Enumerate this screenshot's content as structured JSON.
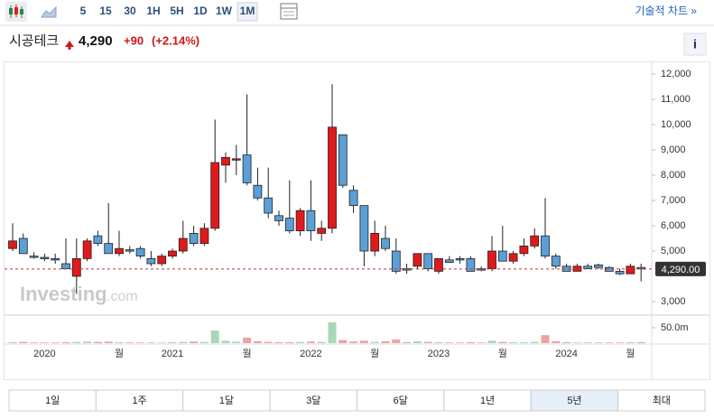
{
  "toolbar": {
    "intervals": [
      "5",
      "15",
      "30",
      "1H",
      "5H",
      "1D",
      "1W",
      "1M"
    ],
    "selected_interval": 7,
    "technical_chart": "기술적 차트 »"
  },
  "header": {
    "name": "시공테크",
    "price": "4,290",
    "change": "+90",
    "change_pct": "(+2.14%)",
    "info": "i"
  },
  "watermark": {
    "brand": "Investing",
    "suffix": ".com"
  },
  "ranges": {
    "labels": [
      "1일",
      "1주",
      "1달",
      "3달",
      "6달",
      "1년",
      "5년",
      "최대"
    ],
    "selected": 6
  },
  "chart_data": {
    "type": "candlestick",
    "categories": [
      null,
      null,
      null,
      "2020",
      null,
      null,
      null,
      null,
      null,
      null,
      "월",
      null,
      null,
      null,
      null,
      "2021",
      null,
      null,
      null,
      null,
      null,
      null,
      "월",
      null,
      null,
      null,
      null,
      null,
      "2022",
      null,
      null,
      null,
      null,
      null,
      "월",
      null,
      null,
      null,
      null,
      null,
      "2023",
      null,
      null,
      null,
      null,
      null,
      "월",
      null,
      null,
      null,
      null,
      null,
      "2024",
      null,
      null,
      null,
      null,
      null,
      "월",
      null
    ],
    "open": [
      5100,
      5500,
      4800,
      4750,
      4700,
      4500,
      4000,
      4700,
      5600,
      5300,
      4900,
      5050,
      5100,
      4700,
      4500,
      4800,
      5000,
      5700,
      5300,
      5900,
      8400,
      8600,
      8800,
      7600,
      7100,
      6400,
      6300,
      5800,
      6600,
      5700,
      5900,
      9600,
      7400,
      6800,
      5000,
      5500,
      5000,
      4300,
      4400,
      4900,
      4200,
      4650,
      4700,
      4700,
      4300,
      4300,
      5000,
      4600,
      4900,
      5200,
      5600,
      4800,
      4400,
      4200,
      4400,
      4450,
      4350,
      4200,
      4100,
      4350
    ],
    "high": [
      6100,
      5700,
      4950,
      4900,
      4900,
      5500,
      5500,
      5500,
      5800,
      6900,
      5800,
      5200,
      5200,
      5000,
      4900,
      5100,
      6200,
      6000,
      6100,
      10200,
      8900,
      9200,
      11200,
      8300,
      8300,
      6600,
      7800,
      6700,
      7800,
      6200,
      11600,
      9600,
      7600,
      6800,
      6200,
      6000,
      5500,
      4500,
      4900,
      4900,
      4700,
      4800,
      4800,
      4800,
      4400,
      5600,
      6000,
      5000,
      5500,
      5900,
      7100,
      4900,
      4500,
      4500,
      4500,
      4500,
      4400,
      4300,
      4500,
      4500
    ],
    "low": [
      5000,
      4900,
      4700,
      4600,
      4500,
      4300,
      3300,
      4600,
      5200,
      4900,
      4800,
      4900,
      4700,
      4400,
      4400,
      4700,
      4900,
      5200,
      5200,
      5800,
      7700,
      8000,
      7600,
      7000,
      6300,
      6000,
      5700,
      5600,
      5400,
      5400,
      5700,
      7500,
      6500,
      4400,
      4800,
      5000,
      4100,
      4100,
      4300,
      4200,
      4100,
      4550,
      4500,
      4200,
      4200,
      4200,
      4600,
      4500,
      4800,
      5100,
      4700,
      4300,
      4200,
      4200,
      4300,
      4300,
      4200,
      4050,
      4100,
      3800
    ],
    "close": [
      5400,
      4900,
      4800,
      4750,
      4700,
      4300,
      4700,
      5400,
      5300,
      4900,
      5100,
      5000,
      4800,
      4500,
      4800,
      5000,
      5500,
      5300,
      5900,
      8500,
      8700,
      8650,
      7700,
      7100,
      6500,
      6200,
      5800,
      6600,
      5800,
      5900,
      9900,
      7600,
      6800,
      5000,
      5700,
      5100,
      4200,
      4300,
      4900,
      4300,
      4700,
      4550,
      4700,
      4200,
      4300,
      5000,
      4600,
      4900,
      5200,
      5600,
      4800,
      4400,
      4200,
      4400,
      4300,
      4350,
      4200,
      4100,
      4400,
      4290
    ],
    "volume": [
      3,
      4,
      2,
      2,
      2,
      3,
      4,
      5,
      4,
      5,
      3,
      2,
      2,
      2,
      2,
      3,
      4,
      5,
      4,
      41,
      8,
      5,
      18,
      6,
      4,
      3,
      3,
      4,
      5,
      4,
      68,
      10,
      5,
      8,
      4,
      6,
      12,
      3,
      6,
      4,
      3,
      2,
      2,
      3,
      2,
      8,
      4,
      3,
      3,
      4,
      26,
      6,
      3,
      2,
      2,
      2,
      2,
      2,
      3,
      3
    ],
    "up_color": "#e0191c",
    "down_color": "#5b9fd6",
    "volume_up_color": "#a8d8b9",
    "volume_down_color": "#eba3a3",
    "ylim": [
      2500,
      12430
    ],
    "yticks": [
      {
        "value": 3000,
        "label": "3,000"
      },
      {
        "value": 5000,
        "label": "5,000"
      },
      {
        "value": 6000,
        "label": "6,000"
      },
      {
        "value": 7000,
        "label": "7,000"
      },
      {
        "value": 8000,
        "label": "8,000"
      },
      {
        "value": 9000,
        "label": "9,000"
      },
      {
        "value": 10000,
        "label": "10,000"
      },
      {
        "value": 11000,
        "label": "11,000"
      },
      {
        "value": 12000,
        "label": "12,000"
      }
    ],
    "volume_ylim": [
      0,
      88
    ],
    "volume_yticks": [
      {
        "value": 50,
        "label": "50.0m"
      }
    ],
    "last_price": {
      "value": 4290,
      "label": "4,290.00"
    }
  }
}
